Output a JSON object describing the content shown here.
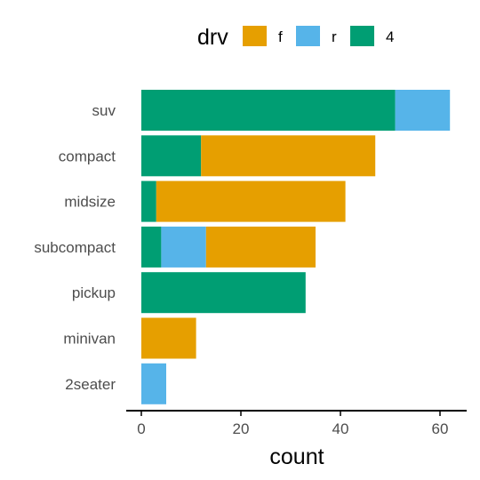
{
  "chart_data": {
    "type": "bar",
    "orientation": "horizontal",
    "stacked": true,
    "title": "",
    "xlabel": "count",
    "ylabel": "",
    "xlim": [
      0,
      65
    ],
    "x_ticks": [
      0,
      20,
      40,
      60
    ],
    "categories": [
      "suv",
      "compact",
      "midsize",
      "subcompact",
      "pickup",
      "minivan",
      "2seater"
    ],
    "legend": {
      "title": "drv",
      "position": "top"
    },
    "series": [
      {
        "name": "4",
        "color": "#009E73",
        "values": [
          51,
          12,
          3,
          4,
          33,
          0,
          0
        ]
      },
      {
        "name": "r",
        "color": "#56B4E9",
        "values": [
          11,
          0,
          0,
          9,
          0,
          0,
          5
        ]
      },
      {
        "name": "f",
        "color": "#E69F00",
        "values": [
          0,
          35,
          38,
          22,
          0,
          11,
          0
        ]
      }
    ],
    "legend_order": [
      "f",
      "r",
      "4"
    ],
    "grid": false
  }
}
